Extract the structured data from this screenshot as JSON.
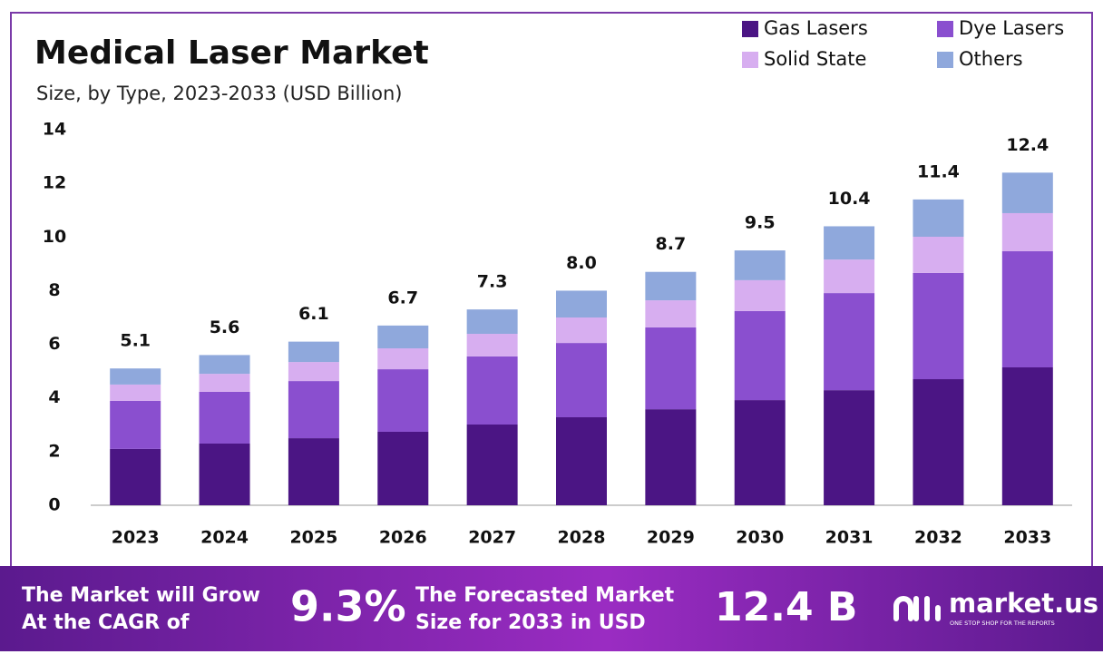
{
  "chart_data": {
    "type": "stacked_bar",
    "title": "Medical Laser Market",
    "subtitle": "Size, by Type, 2023-2033 (USD Billion)",
    "categories": [
      "2023",
      "2024",
      "2025",
      "2026",
      "2027",
      "2028",
      "2029",
      "2030",
      "2031",
      "2032",
      "2033"
    ],
    "series": [
      {
        "name": "Gas Lasers",
        "color": "#4b1584",
        "values": [
          2.1,
          2.3,
          2.5,
          2.74,
          3.01,
          3.28,
          3.58,
          3.92,
          4.29,
          4.7,
          5.14
        ]
      },
      {
        "name": "Dye Lasers",
        "color": "#8a4fcf",
        "values": [
          1.79,
          1.93,
          2.13,
          2.33,
          2.54,
          2.77,
          3.05,
          3.32,
          3.62,
          3.96,
          4.33
        ]
      },
      {
        "name": "Solid State",
        "color": "#d7aef0",
        "values": [
          0.61,
          0.67,
          0.71,
          0.78,
          0.84,
          0.95,
          1.01,
          1.15,
          1.25,
          1.35,
          1.42
        ]
      },
      {
        "name": "Others",
        "color": "#8fa8dc",
        "values": [
          0.6,
          0.7,
          0.76,
          0.85,
          0.91,
          1.0,
          1.06,
          1.11,
          1.24,
          1.39,
          1.51
        ]
      }
    ],
    "totals": {
      "values": [
        5.1,
        5.6,
        6.1,
        6.7,
        7.3,
        8.0,
        8.7,
        9.5,
        10.4,
        11.4,
        12.4
      ],
      "value_labels": [
        "5.1",
        "5.6",
        "6.1",
        "6.7",
        "7.3",
        "8.0",
        "8.7",
        "9.5",
        "10.4",
        "11.4",
        "12.4"
      ]
    },
    "ylim": [
      0,
      14
    ],
    "yticks": [
      0,
      2,
      4,
      6,
      8,
      10,
      12,
      14
    ],
    "grid": false,
    "legend": "top-right"
  },
  "footer": {
    "cagr_text": [
      "The Market will Grow",
      "At the CAGR of"
    ],
    "cagr_value": "9.3%",
    "forecast_text": [
      "The Forecasted Market",
      "Size for 2033 in USD"
    ],
    "forecast_value": "12.4 B",
    "brand": "market.us",
    "tagline": "ONE STOP SHOP FOR THE REPORTS"
  }
}
